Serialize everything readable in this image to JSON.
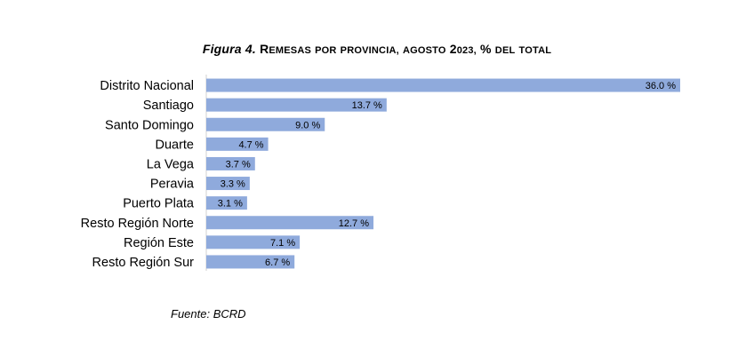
{
  "figure": {
    "title_prefix": "Figura 4.",
    "title_rest": "Remesas por provincia, agosto 2023, % del total",
    "source": "Fuente: BCRD"
  },
  "chart_data": {
    "type": "bar",
    "orientation": "horizontal",
    "title": "Figura 4. Remesas por provincia, agosto 2023, % del total",
    "categories": [
      "Distrito Nacional",
      "Santiago",
      "Santo Domingo",
      "Duarte",
      "La Vega",
      "Peravia",
      "Puerto Plata",
      "Resto Región Norte",
      "Región Este",
      "Resto Región Sur"
    ],
    "values": [
      36.0,
      13.7,
      9.0,
      4.7,
      3.7,
      3.3,
      3.1,
      12.7,
      7.1,
      6.7
    ],
    "value_labels": [
      "36.0 %",
      "13.7 %",
      "9.0 %",
      "4.7 %",
      "3.7 %",
      "3.3 %",
      "3.1 %",
      "12.7 %",
      "7.1 %",
      "6.7 %"
    ],
    "xlim": [
      0,
      36.0
    ],
    "grid": false,
    "legend": "none",
    "bar_color": "#8faadc"
  }
}
